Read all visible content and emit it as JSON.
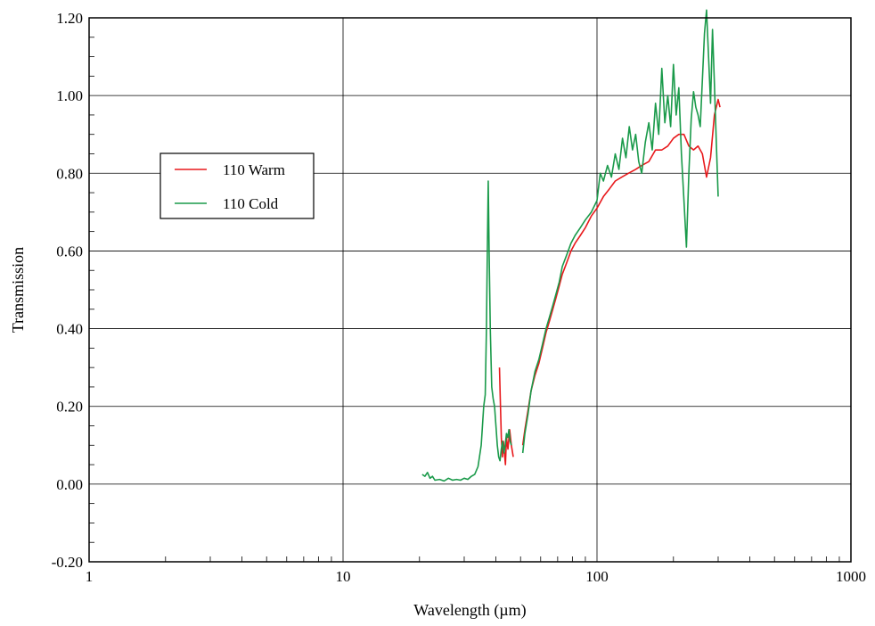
{
  "chart_data": {
    "type": "line",
    "title": "",
    "xlabel": "Wavelength (µm)",
    "ylabel": "Transmission",
    "x_scale": "log",
    "xlim": [
      1,
      1000
    ],
    "ylim": [
      -0.2,
      1.2
    ],
    "x_ticks": [
      1,
      10,
      100,
      1000
    ],
    "x_tick_labels": [
      "1",
      "10",
      "100",
      "1000"
    ],
    "y_ticks": [
      -0.2,
      0.0,
      0.2,
      0.4,
      0.6,
      0.8,
      1.0,
      1.2
    ],
    "y_tick_labels": [
      "-0.20",
      "0.00",
      "0.20",
      "0.40",
      "0.60",
      "0.80",
      "1.00",
      "1.20"
    ],
    "grid": true,
    "legend_position": "left, upper-middle",
    "series": [
      {
        "name": "110 Warm",
        "color": "#e8191c",
        "points": [
          [
            41.3,
            0.3
          ],
          [
            41.6,
            0.22
          ],
          [
            42.0,
            0.12
          ],
          [
            42.4,
            0.07
          ],
          [
            42.8,
            0.11
          ],
          [
            43.2,
            0.08
          ],
          [
            43.6,
            0.05
          ],
          [
            44.0,
            0.12
          ],
          [
            44.6,
            0.09
          ],
          [
            45.3,
            0.14
          ],
          [
            46.0,
            0.1
          ],
          [
            46.8,
            0.07
          ],
          [
            51.0,
            0.1
          ],
          [
            52.0,
            0.14
          ],
          [
            53.5,
            0.19
          ],
          [
            55.0,
            0.24
          ],
          [
            57.0,
            0.28
          ],
          [
            59.0,
            0.31
          ],
          [
            61.0,
            0.35
          ],
          [
            63.0,
            0.39
          ],
          [
            65.0,
            0.42
          ],
          [
            67.0,
            0.45
          ],
          [
            69.0,
            0.48
          ],
          [
            71.0,
            0.51
          ],
          [
            73.0,
            0.54
          ],
          [
            76.0,
            0.57
          ],
          [
            79.0,
            0.6
          ],
          [
            82.0,
            0.62
          ],
          [
            86.0,
            0.64
          ],
          [
            90.0,
            0.66
          ],
          [
            95.0,
            0.69
          ],
          [
            100.0,
            0.71
          ],
          [
            106.0,
            0.74
          ],
          [
            112.0,
            0.76
          ],
          [
            118.0,
            0.78
          ],
          [
            125.0,
            0.79
          ],
          [
            133.0,
            0.8
          ],
          [
            142.0,
            0.81
          ],
          [
            150.0,
            0.82
          ],
          [
            160.0,
            0.83
          ],
          [
            170.0,
            0.86
          ],
          [
            180.0,
            0.86
          ],
          [
            190.0,
            0.87
          ],
          [
            200.0,
            0.89
          ],
          [
            210.0,
            0.9
          ],
          [
            220.0,
            0.9
          ],
          [
            230.0,
            0.87
          ],
          [
            240.0,
            0.86
          ],
          [
            250.0,
            0.87
          ],
          [
            260.0,
            0.85
          ],
          [
            270.0,
            0.79
          ],
          [
            280.0,
            0.84
          ],
          [
            290.0,
            0.95
          ],
          [
            300.0,
            0.99
          ],
          [
            305.0,
            0.97
          ]
        ]
      },
      {
        "name": "110 Cold",
        "color": "#1a9a4a",
        "points": [
          [
            20.5,
            0.025
          ],
          [
            21.0,
            0.02
          ],
          [
            21.5,
            0.03
          ],
          [
            22.0,
            0.015
          ],
          [
            22.5,
            0.02
          ],
          [
            23.0,
            0.01
          ],
          [
            24.0,
            0.012
          ],
          [
            25.0,
            0.008
          ],
          [
            26.0,
            0.015
          ],
          [
            27.0,
            0.01
          ],
          [
            28.0,
            0.012
          ],
          [
            29.0,
            0.01
          ],
          [
            30.0,
            0.015
          ],
          [
            31.0,
            0.012
          ],
          [
            32.0,
            0.02
          ],
          [
            33.0,
            0.025
          ],
          [
            34.0,
            0.045
          ],
          [
            35.0,
            0.1
          ],
          [
            35.8,
            0.2
          ],
          [
            36.3,
            0.23
          ],
          [
            36.7,
            0.4
          ],
          [
            37.0,
            0.6
          ],
          [
            37.3,
            0.78
          ],
          [
            37.6,
            0.6
          ],
          [
            38.0,
            0.4
          ],
          [
            38.5,
            0.25
          ],
          [
            39.0,
            0.22
          ],
          [
            39.5,
            0.2
          ],
          [
            40.0,
            0.15
          ],
          [
            40.5,
            0.1
          ],
          [
            41.0,
            0.07
          ],
          [
            41.5,
            0.06
          ],
          [
            42.0,
            0.09
          ],
          [
            42.5,
            0.11
          ],
          [
            43.0,
            0.08
          ],
          [
            43.5,
            0.1
          ],
          [
            44.0,
            0.13
          ],
          [
            44.5,
            0.12
          ],
          [
            45.0,
            0.14
          ],
          [
            45.5,
            0.11
          ],
          [
            46.0,
            0.1
          ],
          [
            51.0,
            0.08
          ],
          [
            52.0,
            0.13
          ],
          [
            53.5,
            0.18
          ],
          [
            55.0,
            0.24
          ],
          [
            57.0,
            0.29
          ],
          [
            59.0,
            0.32
          ],
          [
            61.0,
            0.36
          ],
          [
            63.0,
            0.4
          ],
          [
            65.0,
            0.43
          ],
          [
            67.0,
            0.46
          ],
          [
            69.0,
            0.49
          ],
          [
            71.0,
            0.52
          ],
          [
            73.0,
            0.56
          ],
          [
            76.0,
            0.59
          ],
          [
            79.0,
            0.62
          ],
          [
            82.0,
            0.64
          ],
          [
            86.0,
            0.66
          ],
          [
            90.0,
            0.68
          ],
          [
            95.0,
            0.7
          ],
          [
            100.0,
            0.73
          ],
          [
            103.0,
            0.8
          ],
          [
            106.0,
            0.78
          ],
          [
            110.0,
            0.82
          ],
          [
            114.0,
            0.79
          ],
          [
            118.0,
            0.85
          ],
          [
            122.0,
            0.81
          ],
          [
            126.0,
            0.89
          ],
          [
            130.0,
            0.84
          ],
          [
            134.0,
            0.92
          ],
          [
            138.0,
            0.86
          ],
          [
            142.0,
            0.9
          ],
          [
            146.0,
            0.83
          ],
          [
            150.0,
            0.8
          ],
          [
            155.0,
            0.88
          ],
          [
            160.0,
            0.93
          ],
          [
            165.0,
            0.86
          ],
          [
            170.0,
            0.98
          ],
          [
            175.0,
            0.9
          ],
          [
            180.0,
            1.07
          ],
          [
            185.0,
            0.93
          ],
          [
            190.0,
            1.0
          ],
          [
            195.0,
            0.92
          ],
          [
            200.0,
            1.08
          ],
          [
            205.0,
            0.95
          ],
          [
            210.0,
            1.02
          ],
          [
            215.0,
            0.85
          ],
          [
            220.0,
            0.73
          ],
          [
            225.0,
            0.61
          ],
          [
            230.0,
            0.8
          ],
          [
            235.0,
            0.94
          ],
          [
            240.0,
            1.01
          ],
          [
            245.0,
            0.97
          ],
          [
            250.0,
            0.95
          ],
          [
            255.0,
            0.92
          ],
          [
            260.0,
            1.04
          ],
          [
            265.0,
            1.16
          ],
          [
            270.0,
            1.22
          ],
          [
            275.0,
            1.1
          ],
          [
            280.0,
            0.98
          ],
          [
            285.0,
            1.17
          ],
          [
            290.0,
            1.03
          ],
          [
            295.0,
            0.88
          ],
          [
            300.0,
            0.74
          ]
        ]
      }
    ]
  }
}
